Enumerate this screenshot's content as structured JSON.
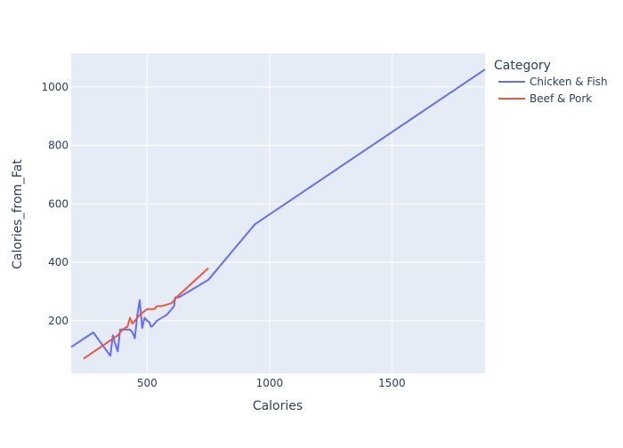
{
  "chart_data": {
    "type": "line",
    "xlabel": "Calories",
    "ylabel": "Calories_from_Fat",
    "xlim": [
      190,
      1880
    ],
    "ylim": [
      20,
      1115
    ],
    "x_ticks": [
      500,
      1000,
      1500
    ],
    "y_ticks": [
      200,
      400,
      600,
      800,
      1000
    ],
    "grid": true,
    "background": "#e5ecf6",
    "legend": {
      "title": "Category",
      "placement": "right"
    },
    "series": [
      {
        "name": "Chicken & Fish",
        "color": "#636efa",
        "points": [
          [
            190,
            110
          ],
          [
            280,
            160
          ],
          [
            350,
            80
          ],
          [
            360,
            150
          ],
          [
            370,
            120
          ],
          [
            380,
            95
          ],
          [
            390,
            170
          ],
          [
            430,
            170
          ],
          [
            440,
            160
          ],
          [
            450,
            140
          ],
          [
            460,
            220
          ],
          [
            470,
            270
          ],
          [
            480,
            175
          ],
          [
            490,
            210
          ],
          [
            500,
            200
          ],
          [
            510,
            195
          ],
          [
            515,
            180
          ],
          [
            520,
            180
          ],
          [
            540,
            200
          ],
          [
            580,
            220
          ],
          [
            590,
            230
          ],
          [
            600,
            240
          ],
          [
            610,
            250
          ],
          [
            615,
            280
          ],
          [
            630,
            280
          ],
          [
            750,
            340
          ],
          [
            940,
            530
          ],
          [
            1880,
            1060
          ]
        ]
      },
      {
        "name": "Beef & Pork",
        "color": "#ef553b",
        "points": [
          [
            240,
            70
          ],
          [
            380,
            150
          ],
          [
            400,
            170
          ],
          [
            420,
            180
          ],
          [
            430,
            210
          ],
          [
            440,
            190
          ],
          [
            470,
            220
          ],
          [
            500,
            240
          ],
          [
            520,
            240
          ],
          [
            530,
            240
          ],
          [
            540,
            250
          ],
          [
            560,
            250
          ],
          [
            600,
            260
          ],
          [
            610,
            270
          ],
          [
            620,
            280
          ],
          [
            750,
            380
          ]
        ]
      }
    ]
  }
}
